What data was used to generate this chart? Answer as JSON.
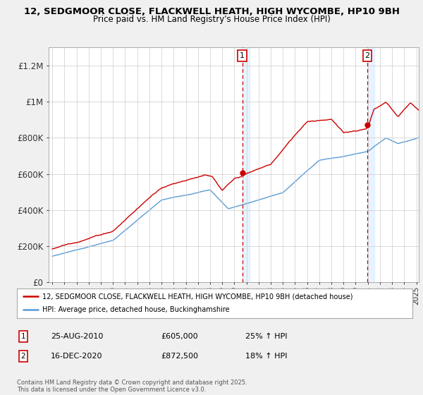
{
  "title_line1": "12, SEDGMOOR CLOSE, FLACKWELL HEATH, HIGH WYCOMBE, HP10 9BH",
  "title_line2": "Price paid vs. HM Land Registry's House Price Index (HPI)",
  "ylim": [
    0,
    1300000
  ],
  "yticks": [
    0,
    200000,
    400000,
    600000,
    800000,
    1000000,
    1200000
  ],
  "ytick_labels": [
    "£0",
    "£200K",
    "£400K",
    "£600K",
    "£800K",
    "£1M",
    "£1.2M"
  ],
  "line1_color": "#cc0000",
  "line2_color": "#5b9bd5",
  "shade_color": "#ddeeff",
  "transaction1_price": 605000,
  "transaction2_price": 872500,
  "legend_label1": "12, SEDGMOOR CLOSE, FLACKWELL HEATH, HIGH WYCOMBE, HP10 9BH (detached house)",
  "legend_label2": "HPI: Average price, detached house, Buckinghamshire",
  "footer_text": "Contains HM Land Registry data © Crown copyright and database right 2025.\nThis data is licensed under the Open Government Licence v3.0.",
  "vline1_x": 2010.65,
  "vline2_x": 2020.96,
  "background_color": "#f0f0f0",
  "plot_bg_color": "#ffffff",
  "xmin": 1995.0,
  "xmax": 2025.2
}
